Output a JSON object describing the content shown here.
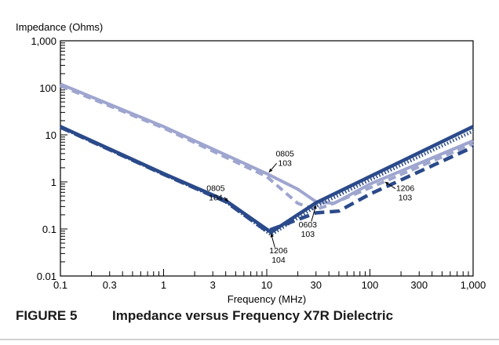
{
  "caption": {
    "figure_number": "FIGURE 5",
    "title": "Impedance versus Frequency X7R Dielectric"
  },
  "chart_data": {
    "type": "line",
    "ylabel": "Impedance (Ohms)",
    "xlabel": "Frequency (MHz)",
    "x_scale": "log",
    "y_scale": "log",
    "xlim": [
      0.1,
      1000
    ],
    "ylim": [
      0.01,
      1000
    ],
    "x_ticks": [
      0.1,
      0.3,
      1,
      3,
      10,
      30,
      100,
      300,
      1000
    ],
    "x_tick_labels": [
      "0.1",
      "0.3",
      "1",
      "3",
      "10",
      "30",
      "100",
      "300",
      "1,000"
    ],
    "y_ticks": [
      0.01,
      0.1,
      1,
      10,
      100,
      1000
    ],
    "y_tick_labels": [
      "0.01",
      "0.1",
      "1",
      "10",
      "100",
      "1,000"
    ],
    "grid": false,
    "colors": {
      "dark_navy": "#2b4a8a",
      "light_lavender": "#9ea6cf"
    },
    "series": [
      {
        "style": "light-solid",
        "color": "#9ea6cf",
        "points": [
          [
            0.1,
            120
          ],
          [
            1,
            15
          ],
          [
            10,
            1.5
          ],
          [
            20,
            0.7
          ],
          [
            30,
            0.38
          ],
          [
            45,
            0.35
          ],
          [
            100,
            0.9
          ],
          [
            1000,
            7.5
          ]
        ]
      },
      {
        "style": "light-dashed",
        "color": "#9ea6cf",
        "points": [
          [
            0.1,
            110
          ],
          [
            1,
            14
          ],
          [
            10,
            1.3
          ],
          [
            20,
            0.35
          ],
          [
            30,
            0.26
          ],
          [
            40,
            0.32
          ],
          [
            100,
            0.75
          ],
          [
            1000,
            6.5
          ]
        ]
      },
      {
        "style": "dark-solid",
        "color": "#2b4a8a",
        "points": [
          [
            0.1,
            15
          ],
          [
            1,
            1.5
          ],
          [
            4,
            0.4
          ],
          [
            11,
            0.085
          ],
          [
            30,
            0.36
          ],
          [
            100,
            1.3
          ],
          [
            1000,
            15
          ]
        ]
      },
      {
        "style": "dark-dotted",
        "color": "#2b4a8a",
        "points": [
          [
            0.1,
            14.5
          ],
          [
            1,
            1.45
          ],
          [
            4,
            0.38
          ],
          [
            11,
            0.075
          ],
          [
            30,
            0.3
          ],
          [
            100,
            1.1
          ],
          [
            1000,
            12
          ]
        ]
      },
      {
        "style": "dark-dashed",
        "color": "#2b4a8a",
        "points": [
          [
            0.1,
            14.5
          ],
          [
            1,
            1.45
          ],
          [
            4,
            0.38
          ],
          [
            10,
            0.09
          ],
          [
            30,
            0.22
          ],
          [
            50,
            0.24
          ],
          [
            100,
            0.55
          ],
          [
            1000,
            5.5
          ]
        ]
      }
    ],
    "annotations": [
      {
        "line1": "0805",
        "line2": "103",
        "x": 15,
        "y": 3.2,
        "arrow_to": [
          10.5,
          1.6
        ]
      },
      {
        "line1": "0805",
        "line2": "104",
        "x": 3.2,
        "y": 0.6,
        "arrow_to": [
          4.2,
          0.38
        ]
      },
      {
        "line1": "0603",
        "line2": "103",
        "x": 25,
        "y": 0.1,
        "arrow_to": [
          30,
          0.32
        ]
      },
      {
        "line1": "1206",
        "line2": "104",
        "x": 13,
        "y": 0.028,
        "arrow_to": [
          11,
          0.08
        ]
      },
      {
        "line1": "1206",
        "line2": "103",
        "x": 220,
        "y": 0.6,
        "arrow_to": [
          140,
          1.0
        ]
      }
    ]
  }
}
